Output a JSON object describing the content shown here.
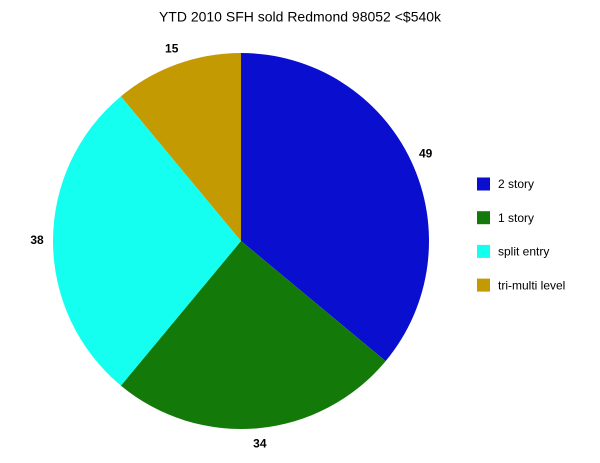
{
  "chart_data": {
    "type": "pie",
    "title": "YTD 2010 SFH sold Redmond 98052 <$540k",
    "categories": [
      "2 story",
      "1 story",
      "split entry",
      "tri-multi level"
    ],
    "values": [
      49,
      34,
      38,
      15
    ],
    "colors": [
      "#0a0ecf",
      "#137a0a",
      "#14fff0",
      "#c49a02"
    ],
    "legend": "right"
  }
}
